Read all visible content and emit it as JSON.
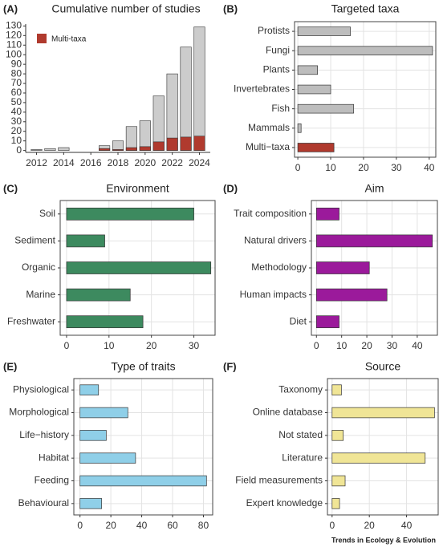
{
  "chart_data": [
    {
      "type": "bar",
      "label": "(A)",
      "title": "Cumulative number of studies",
      "x": [
        2012,
        2013,
        2014,
        2017,
        2018,
        2019,
        2020,
        2021,
        2022,
        2023,
        2024
      ],
      "series": [
        {
          "color": "#cccccc",
          "values": [
            1,
            2,
            3,
            5,
            10,
            25,
            31,
            57,
            80,
            108,
            129
          ]
        },
        {
          "name": "Multi-taxa",
          "color": "#b03a2e",
          "values": [
            0,
            0,
            0,
            2,
            1,
            3,
            4,
            9,
            13,
            14,
            15
          ]
        }
      ],
      "xlim": [
        2011.2,
        2024.8
      ],
      "xticks": [
        2012,
        2014,
        2016,
        2018,
        2020,
        2022,
        2024
      ],
      "ylim": [
        -2,
        132
      ],
      "yticks": [
        0,
        10,
        20,
        30,
        40,
        50,
        60,
        70,
        80,
        90,
        100,
        110,
        120,
        130
      ],
      "grid": false,
      "legend": "top-left"
    },
    {
      "type": "hbar",
      "label": "(B)",
      "title": "Targeted taxa",
      "categories": [
        "Protists",
        "Fungi",
        "Plants",
        "Invertebrates",
        "Fish",
        "Mammals",
        "Multi−taxa"
      ],
      "values": [
        16,
        41,
        6,
        10,
        17,
        1,
        11
      ],
      "colors": [
        "#bdbdbd",
        "#bdbdbd",
        "#bdbdbd",
        "#bdbdbd",
        "#bdbdbd",
        "#bdbdbd",
        "#b03a2e"
      ],
      "xlim": [
        -1,
        42
      ],
      "xticks": [
        0,
        10,
        20,
        30,
        40
      ],
      "grid": true
    },
    {
      "type": "hbar",
      "label": "(C)",
      "title": "Environment",
      "categories": [
        "Soil",
        "Sediment",
        "Organic",
        "Marine",
        "Freshwater"
      ],
      "values": [
        30,
        9,
        34,
        15,
        18
      ],
      "color": "#3d8a5f",
      "xlim": [
        -1.5,
        35
      ],
      "xticks": [
        0,
        10,
        20,
        30
      ],
      "grid": true
    },
    {
      "type": "hbar",
      "label": "(D)",
      "title": "Aim",
      "categories": [
        "Trait composition",
        "Natural drivers",
        "Methodology",
        "Human impacts",
        "Diet"
      ],
      "values": [
        9,
        46,
        21,
        28,
        9
      ],
      "color": "#9b1a9b",
      "xlim": [
        -2,
        48
      ],
      "xticks": [
        0,
        10,
        20,
        30,
        40
      ],
      "grid": true
    },
    {
      "type": "hbar",
      "label": "(E)",
      "title": "Type of traits",
      "categories": [
        "Physiological",
        "Morphological",
        "Life−history",
        "Habitat",
        "Feeding",
        "Behavioural"
      ],
      "values": [
        12,
        31,
        17,
        36,
        82,
        14
      ],
      "color": "#8fcfe8",
      "xlim": [
        -4,
        86
      ],
      "xticks": [
        0,
        20,
        40,
        60,
        80
      ],
      "grid": true
    },
    {
      "type": "hbar",
      "label": "(F)",
      "title": "Source",
      "categories": [
        "Taxonomy",
        "Online database",
        "Not stated",
        "Literature",
        "Field measurements",
        "Expert knowledge"
      ],
      "values": [
        5,
        55,
        6,
        50,
        7,
        4
      ],
      "color": "#f0e596",
      "xlim": [
        -2.5,
        57
      ],
      "xticks": [
        0,
        20,
        40
      ],
      "grid": true
    }
  ],
  "footer": "Trends in Ecology & Evolution"
}
